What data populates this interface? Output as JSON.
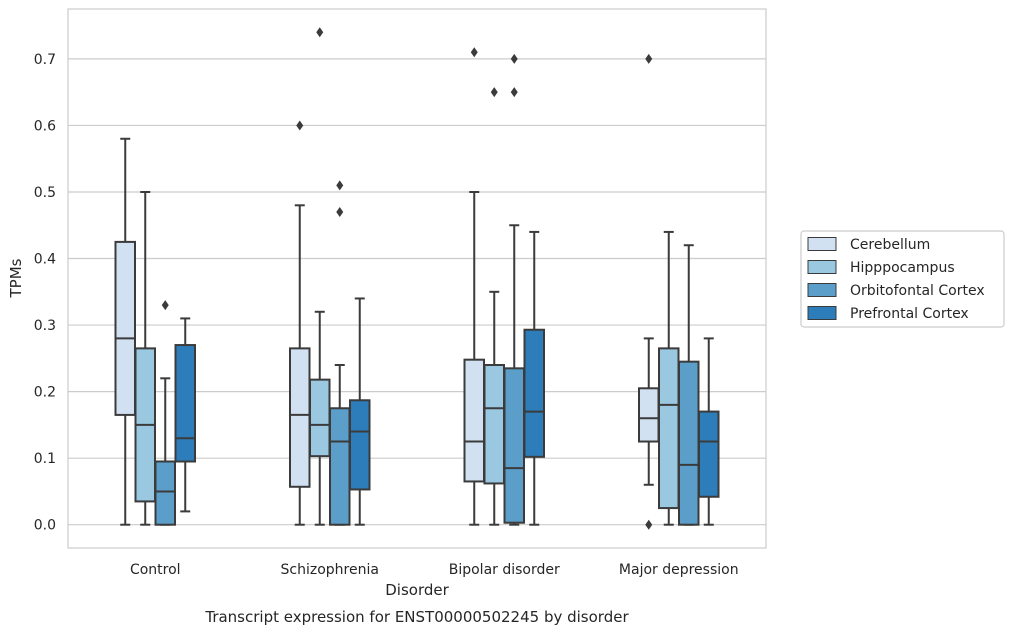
{
  "chart_data": {
    "type": "box",
    "caption": "Transcript expression for ENST00000502245 by disorder",
    "xlabel": "Disorder",
    "ylabel": "TPMs",
    "ylim": [
      -0.035,
      0.775
    ],
    "yticks": [
      0.0,
      0.1,
      0.2,
      0.3,
      0.4,
      0.5,
      0.6,
      0.7
    ],
    "categories": [
      "Control",
      "Schizophrenia",
      "Bipolar disorder",
      "Major depression"
    ],
    "grid": "horizontal",
    "legend_position": "right",
    "series": [
      {
        "name": "Cerebellum",
        "color": "#d1e1f1",
        "boxes": [
          {
            "whislo": 0.0,
            "q1": 0.165,
            "med": 0.28,
            "q3": 0.425,
            "whishi": 0.58,
            "fliers": []
          },
          {
            "whislo": 0.0,
            "q1": 0.057,
            "med": 0.165,
            "q3": 0.265,
            "whishi": 0.48,
            "fliers": [
              0.6
            ]
          },
          {
            "whislo": 0.0,
            "q1": 0.065,
            "med": 0.125,
            "q3": 0.248,
            "whishi": 0.5,
            "fliers": [
              0.71
            ]
          },
          {
            "whislo": 0.06,
            "q1": 0.125,
            "med": 0.16,
            "q3": 0.205,
            "whishi": 0.28,
            "fliers": [
              0.0,
              0.7
            ]
          }
        ]
      },
      {
        "name": "Hipppocampus",
        "color": "#9ac8e0",
        "boxes": [
          {
            "whislo": 0.0,
            "q1": 0.035,
            "med": 0.15,
            "q3": 0.265,
            "whishi": 0.5,
            "fliers": []
          },
          {
            "whislo": 0.0,
            "q1": 0.103,
            "med": 0.15,
            "q3": 0.218,
            "whishi": 0.32,
            "fliers": [
              0.74
            ]
          },
          {
            "whislo": 0.0,
            "q1": 0.062,
            "med": 0.175,
            "q3": 0.24,
            "whishi": 0.35,
            "fliers": [
              0.65
            ]
          },
          {
            "whislo": 0.0,
            "q1": 0.025,
            "med": 0.18,
            "q3": 0.265,
            "whishi": 0.44,
            "fliers": []
          }
        ]
      },
      {
        "name": "Orbitofontal Cortex",
        "color": "#5b9ec9",
        "boxes": [
          {
            "whislo": 0.0,
            "q1": 0.0,
            "med": 0.05,
            "q3": 0.095,
            "whishi": 0.22,
            "fliers": [
              0.33
            ]
          },
          {
            "whislo": 0.0,
            "q1": 0.0,
            "med": 0.125,
            "q3": 0.175,
            "whishi": 0.24,
            "fliers": [
              0.47,
              0.51
            ]
          },
          {
            "whislo": 0.0,
            "q1": 0.003,
            "med": 0.085,
            "q3": 0.235,
            "whishi": 0.45,
            "fliers": [
              0.65,
              0.7
            ]
          },
          {
            "whislo": 0.0,
            "q1": 0.0,
            "med": 0.09,
            "q3": 0.245,
            "whishi": 0.42,
            "fliers": []
          }
        ]
      },
      {
        "name": "Prefrontal Cortex",
        "color": "#2d7dbb",
        "boxes": [
          {
            "whislo": 0.02,
            "q1": 0.095,
            "med": 0.13,
            "q3": 0.27,
            "whishi": 0.31,
            "fliers": []
          },
          {
            "whislo": 0.0,
            "q1": 0.053,
            "med": 0.14,
            "q3": 0.187,
            "whishi": 0.34,
            "fliers": []
          },
          {
            "whislo": 0.0,
            "q1": 0.102,
            "med": 0.17,
            "q3": 0.293,
            "whishi": 0.44,
            "fliers": []
          },
          {
            "whislo": 0.0,
            "q1": 0.042,
            "med": 0.125,
            "q3": 0.17,
            "whishi": 0.28,
            "fliers": []
          }
        ]
      }
    ]
  }
}
